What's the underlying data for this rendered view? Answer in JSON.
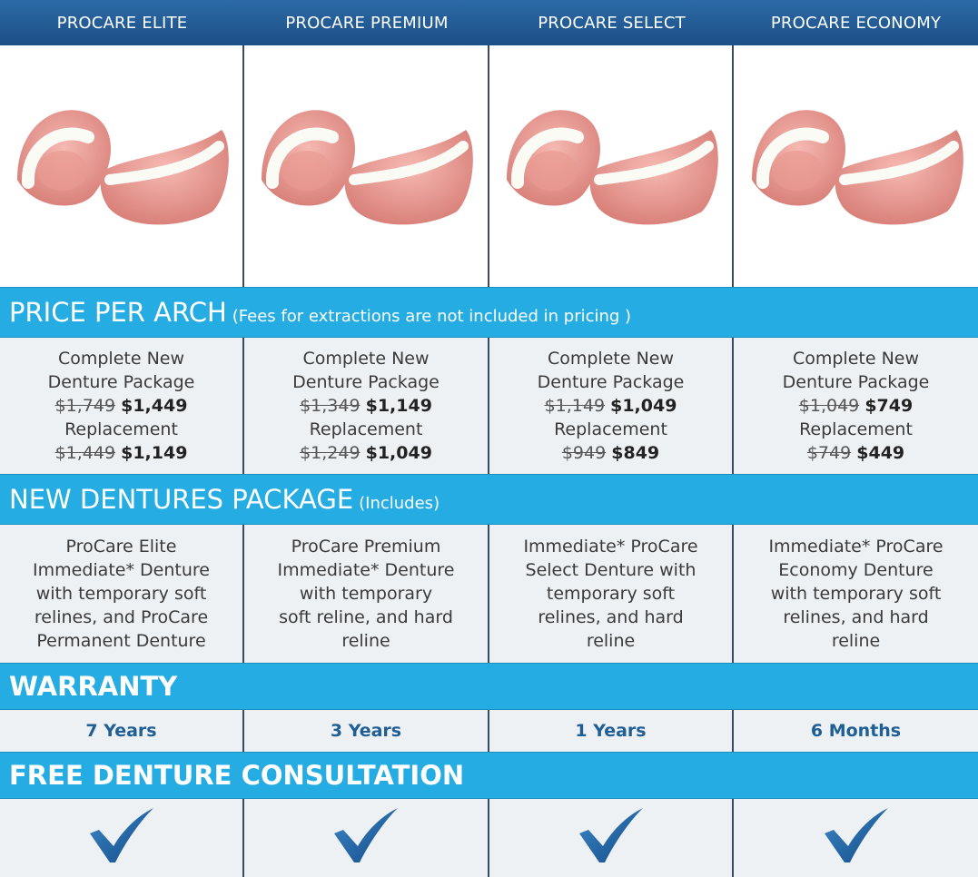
{
  "columns": [
    {
      "title": "PROCARE ELITE"
    },
    {
      "title": "PROCARE PREMIUM"
    },
    {
      "title": "PROCARE SELECT"
    },
    {
      "title": "PROCARE ECONOMY"
    }
  ],
  "sections": {
    "price": {
      "title": "PRICE PER ARCH",
      "note": "(Fees for extractions are not included in pricing )"
    },
    "package": {
      "title": "NEW DENTURES PACKAGE",
      "note": "(Includes)"
    },
    "warranty": {
      "title": "WARRANTY"
    },
    "consultation": {
      "title": "FREE DENTURE CONSULTATION"
    }
  },
  "prices": [
    {
      "line1": "Complete New",
      "line2": "Denture Package",
      "old": "$1,749",
      "new": "$1,449",
      "rep_label": "Replacement",
      "rep_old": "$1,449",
      "rep_new": "$1,149"
    },
    {
      "line1": "Complete New",
      "line2": "Denture Package",
      "old": "$1,349",
      "new": "$1,149",
      "rep_label": "Replacement",
      "rep_old": "$1,249",
      "rep_new": "$1,049"
    },
    {
      "line1": "Complete New",
      "line2": "Denture Package",
      "old": "$1,149",
      "new": "$1,049",
      "rep_label": "Replacement",
      "rep_old": "$949",
      "rep_new": "$849"
    },
    {
      "line1": "Complete New",
      "line2": "Denture Package",
      "old": "$1,049",
      "new": "$749",
      "rep_label": "Replacement",
      "rep_old": "$749",
      "rep_new": "$449"
    }
  ],
  "packages": [
    [
      "ProCare Elite",
      "Immediate* Denture",
      "with temporary soft",
      "relines, and ProCare",
      "Permanent Denture"
    ],
    [
      "ProCare Premium",
      "Immediate* Denture",
      "with temporary",
      "soft reline, and hard",
      "reline"
    ],
    [
      "Immediate* ProCare",
      "Select Denture with",
      "temporary soft",
      "relines, and hard",
      "reline"
    ],
    [
      "Immediate* ProCare",
      "Economy Denture",
      "with temporary soft",
      "relines, and hard",
      "reline"
    ]
  ],
  "warranty": [
    "7 Years",
    "3 Years",
    "1 Years",
    "6 Months"
  ],
  "icons": {
    "check": "checkmark-icon",
    "product": "denture-image"
  },
  "colors": {
    "header": "#1b4f86",
    "band": "#25ace3",
    "cell": "#eef1f4",
    "warranty_text": "#1f5f95",
    "check": "#1a5d9c"
  }
}
